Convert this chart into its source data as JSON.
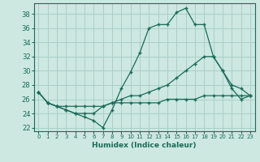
{
  "title": "",
  "xlabel": "Humidex (Indice chaleur)",
  "bg_color": "#cce8e0",
  "grid_color": "#aacfc8",
  "line_color": "#1a6b5a",
  "xlim": [
    -0.5,
    23.5
  ],
  "ylim": [
    21.5,
    39.5
  ],
  "xticks": [
    0,
    1,
    2,
    3,
    4,
    5,
    6,
    7,
    8,
    9,
    10,
    11,
    12,
    13,
    14,
    15,
    16,
    17,
    18,
    19,
    20,
    21,
    22,
    23
  ],
  "yticks": [
    22,
    24,
    26,
    28,
    30,
    32,
    34,
    36,
    38
  ],
  "line1_x": [
    0,
    1,
    2,
    3,
    4,
    5,
    6,
    7,
    8,
    9,
    10,
    11,
    12,
    13,
    14,
    15,
    16,
    17,
    18,
    19,
    20,
    21,
    22,
    23
  ],
  "line1_y": [
    27,
    25.5,
    25,
    24.5,
    24,
    23.5,
    23,
    22,
    24.5,
    27.5,
    29.8,
    32.5,
    36,
    36.5,
    36.5,
    38.2,
    38.8,
    36.5,
    36.5,
    32,
    30,
    27.5,
    26,
    26.5
  ],
  "line2_x": [
    0,
    1,
    2,
    3,
    4,
    5,
    6,
    7,
    8,
    9,
    10,
    11,
    12,
    13,
    14,
    15,
    16,
    17,
    18,
    19,
    20,
    21,
    22,
    23
  ],
  "line2_y": [
    27,
    25.5,
    25,
    24.5,
    24,
    24,
    24,
    25,
    25.5,
    26,
    26.5,
    26.5,
    27,
    27.5,
    28,
    29,
    30,
    31,
    32,
    32,
    30,
    28,
    27.5,
    26.5
  ],
  "line3_x": [
    0,
    1,
    2,
    3,
    4,
    5,
    6,
    7,
    8,
    9,
    10,
    11,
    12,
    13,
    14,
    15,
    16,
    17,
    18,
    19,
    20,
    21,
    22,
    23
  ],
  "line3_y": [
    27,
    25.5,
    25,
    25,
    25,
    25,
    25,
    25,
    25.5,
    25.5,
    25.5,
    25.5,
    25.5,
    25.5,
    26,
    26,
    26,
    26,
    26.5,
    26.5,
    26.5,
    26.5,
    26.5,
    26.5
  ]
}
